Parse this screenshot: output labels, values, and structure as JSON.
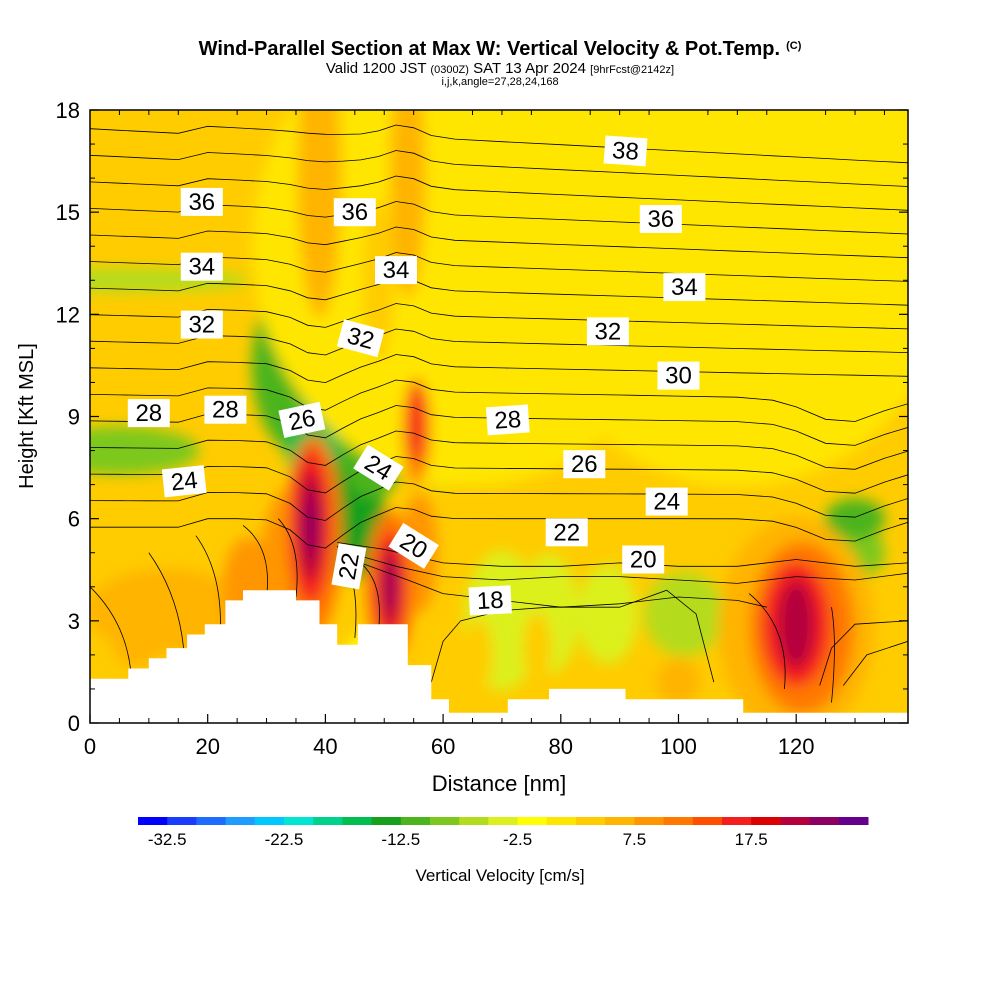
{
  "chart_data": {
    "type": "heatmap",
    "title": "Wind-Parallel Section at Max W: Vertical Velocity & Pot.Temp.",
    "title_mark": "(C)",
    "subtitle_main": "Valid 1200 JST",
    "subtitle_z": "(0300Z)",
    "subtitle_date": "SAT 13 Apr 2024",
    "subtitle_fcst": "[9hrFcst@2142z]",
    "subtitle_grid": "i,j,k,angle=27,28,24,168",
    "xlabel": "Distance [nm]",
    "ylabel": "Height [Kft MSL]",
    "xlim": [
      0,
      139
    ],
    "ylim": [
      0,
      18
    ],
    "x_ticks": [
      "0",
      "20",
      "40",
      "60",
      "80",
      "100",
      "120"
    ],
    "y_ticks": [
      "0",
      "3",
      "6",
      "9",
      "12",
      "15",
      "18"
    ],
    "colorbar": {
      "label": "Vertical Velocity [cm/s]",
      "tick_labels": [
        "-32.5",
        "-22.5",
        "-12.5",
        "-2.5",
        "7.5",
        "17.5"
      ],
      "tick_values": [
        -32.5,
        -22.5,
        -12.5,
        -2.5,
        7.5,
        17.5
      ],
      "min": -35,
      "step": 2.5,
      "colors": [
        "#0000ff",
        "#1a3cff",
        "#1e6cff",
        "#1e9cff",
        "#00c8ff",
        "#00e6d2",
        "#00d28c",
        "#00be50",
        "#16a01e",
        "#4bb41e",
        "#7dc81e",
        "#b4dc1e",
        "#dcf01e",
        "#ffff00",
        "#ffe600",
        "#ffcc00",
        "#ffb400",
        "#ff9600",
        "#ff7800",
        "#ff5000",
        "#f51e1e",
        "#dc0000",
        "#b4003c",
        "#8c0064",
        "#64008c"
      ]
    },
    "theta_labels": [
      {
        "text": "38",
        "x": 91,
        "y": 16.8,
        "angle": 4
      },
      {
        "text": "36",
        "x": 19,
        "y": 15.3,
        "angle": 0
      },
      {
        "text": "36",
        "x": 45,
        "y": 15.0,
        "angle": 0
      },
      {
        "text": "36",
        "x": 97,
        "y": 14.8,
        "angle": 0
      },
      {
        "text": "34",
        "x": 19,
        "y": 13.4,
        "angle": 0
      },
      {
        "text": "34",
        "x": 52,
        "y": 13.3,
        "angle": 0
      },
      {
        "text": "34",
        "x": 101,
        "y": 12.8,
        "angle": 0
      },
      {
        "text": "32",
        "x": 19,
        "y": 11.7,
        "angle": 0
      },
      {
        "text": "32",
        "x": 46,
        "y": 11.3,
        "angle": 15
      },
      {
        "text": "32",
        "x": 88,
        "y": 11.5,
        "angle": 0
      },
      {
        "text": "30",
        "x": 100,
        "y": 10.2,
        "angle": 0
      },
      {
        "text": "28",
        "x": 10,
        "y": 9.1,
        "angle": 0
      },
      {
        "text": "28",
        "x": 23,
        "y": 9.2,
        "angle": 0
      },
      {
        "text": "28",
        "x": 71,
        "y": 8.9,
        "angle": -4
      },
      {
        "text": "26",
        "x": 36,
        "y": 8.9,
        "angle": -12
      },
      {
        "text": "26",
        "x": 84,
        "y": 7.6,
        "angle": 0
      },
      {
        "text": "24",
        "x": 16,
        "y": 7.1,
        "angle": -6
      },
      {
        "text": "24",
        "x": 49,
        "y": 7.5,
        "angle": 32
      },
      {
        "text": "24",
        "x": 98,
        "y": 6.5,
        "angle": 0
      },
      {
        "text": "22",
        "x": 81,
        "y": 5.6,
        "angle": 0
      },
      {
        "text": "22",
        "x": 44,
        "y": 4.6,
        "angle": -80
      },
      {
        "text": "20",
        "x": 55,
        "y": 5.2,
        "angle": 32
      },
      {
        "text": "20",
        "x": 94,
        "y": 4.8,
        "angle": 0
      },
      {
        "text": "18",
        "x": 68,
        "y": 3.6,
        "angle": -3
      }
    ]
  }
}
